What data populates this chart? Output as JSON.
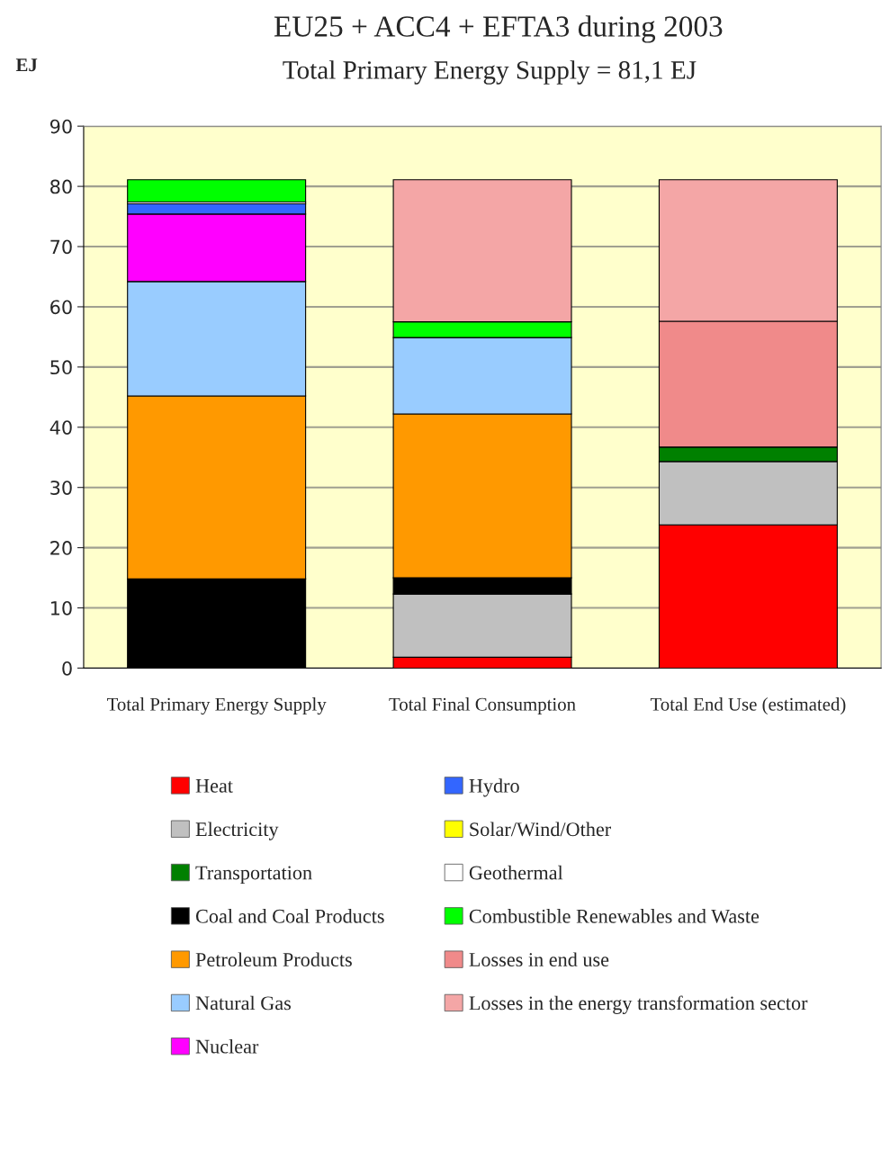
{
  "chart_data": {
    "type": "bar",
    "stacked": true,
    "title": "EU25 + ACC4 + EFTA3 during 2003",
    "subtitle": "Total Primary Energy Supply = 81,1 EJ",
    "ylabel": "EJ",
    "categories": [
      "Total Primary Energy Supply",
      "Total Final Consumption",
      "Total End Use (estimated)"
    ],
    "ylim": [
      0,
      90
    ],
    "yticks": [
      0,
      10,
      20,
      30,
      40,
      50,
      60,
      70,
      80,
      90
    ],
    "grid": "y",
    "legend": "bottom",
    "series": [
      {
        "name": "Heat",
        "color": "#ff0000",
        "values": [
          null,
          1.8,
          23.8
        ]
      },
      {
        "name": "Electricity",
        "color": "#c0c0c0",
        "values": [
          null,
          10.5,
          10.5
        ]
      },
      {
        "name": "Transportation",
        "color": "#008000",
        "values": [
          null,
          null,
          2.4
        ]
      },
      {
        "name": "Coal and Coal Products",
        "color": "#000000",
        "values": [
          14.8,
          2.7,
          null
        ]
      },
      {
        "name": "Petroleum Products",
        "color": "#ff9900",
        "values": [
          30.4,
          27.2,
          null
        ]
      },
      {
        "name": "Natural Gas",
        "color": "#99ccff",
        "values": [
          19.0,
          12.7,
          null
        ]
      },
      {
        "name": "Nuclear",
        "color": "#ff00ff",
        "values": [
          11.2,
          null,
          null
        ]
      },
      {
        "name": "Hydro",
        "color": "#3366ff",
        "values": [
          1.7,
          null,
          null
        ]
      },
      {
        "name": "Solar/Wind/Other",
        "color": "#ffff00",
        "values": [
          null,
          null,
          null
        ]
      },
      {
        "name": "Geothermal",
        "color": "#ffffff",
        "values": [
          0.3,
          null,
          null
        ]
      },
      {
        "name": "Combustible Renewables and Waste",
        "color": "#00ff00",
        "values": [
          3.7,
          2.6,
          null
        ]
      },
      {
        "name": "Losses in end use",
        "color": "#f08a8a",
        "values": [
          null,
          null,
          20.9
        ]
      },
      {
        "name": "Losses in the energy transformation sector",
        "color": "#f4a6a6",
        "values": [
          null,
          23.6,
          23.5
        ]
      }
    ]
  }
}
